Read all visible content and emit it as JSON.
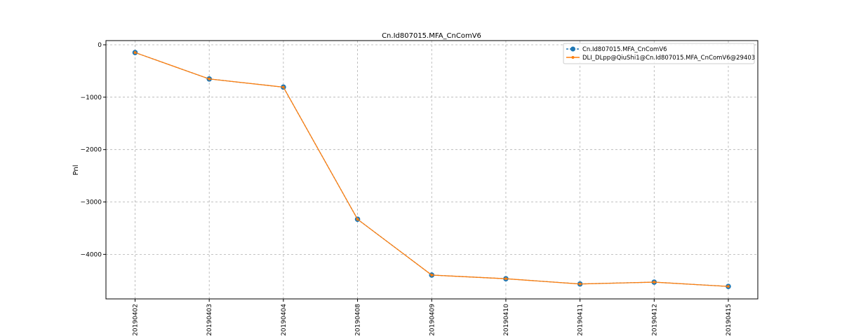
{
  "chart_data": {
    "type": "line",
    "title": "Cn.Id807015.MFA_CnComV6",
    "xlabel": "",
    "ylabel": "Pnl",
    "categories": [
      "20190402",
      "20190403",
      "20190404",
      "20190408",
      "20190409",
      "20190410",
      "20190411",
      "20190412",
      "20190415"
    ],
    "ylim": [
      -4850,
      80
    ],
    "yticks": [
      0,
      -1000,
      -2000,
      -3000,
      -4000
    ],
    "ytick_labels": [
      "0",
      "−1000",
      "−2000",
      "−3000",
      "−4000"
    ],
    "grid": true,
    "legend_position": "top-right",
    "series": [
      {
        "name": "Cn.Id807015.MFA_CnComV6",
        "color": "#1f77b4",
        "marker": "large-circle",
        "values": [
          -148,
          -652,
          -808,
          -3330,
          -4395,
          -4465,
          -4565,
          -4530,
          -4612
        ]
      },
      {
        "name": "DLI_DLpp@QiuShi1@Cn.Id807015.MFA_CnComV6@29403",
        "color": "#ff7f0e",
        "marker": "small-circle",
        "values": [
          -148,
          -652,
          -808,
          -3330,
          -4395,
          -4465,
          -4565,
          -4530,
          -4612
        ]
      }
    ]
  }
}
